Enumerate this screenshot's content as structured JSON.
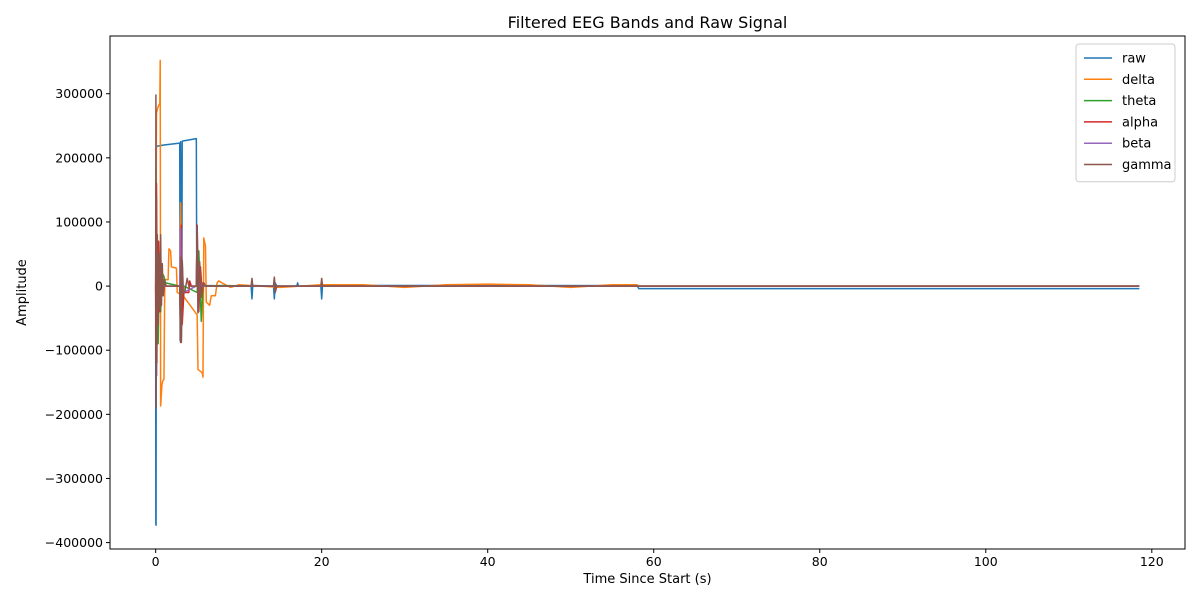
{
  "chart_data": {
    "type": "line",
    "title": "Filtered EEG Bands and Raw Signal",
    "xlabel": "Time Since Start (s)",
    "ylabel": "Amplitude",
    "xlim": [
      -5.5,
      124
    ],
    "ylim": [
      -410000,
      390000
    ],
    "xticks": [
      0,
      20,
      40,
      60,
      80,
      100,
      120
    ],
    "yticks": [
      -400000,
      -300000,
      -200000,
      -100000,
      0,
      100000,
      200000,
      300000
    ],
    "xtick_labels": [
      "0",
      "20",
      "40",
      "60",
      "80",
      "100",
      "120"
    ],
    "ytick_labels": [
      "−400000",
      "−300000",
      "−200000",
      "−100000",
      "0",
      "100000",
      "200000",
      "300000"
    ],
    "grid": false,
    "legend_position": "top-right",
    "series": [
      {
        "name": "raw",
        "color": "#1f77b4",
        "points": [
          [
            0,
            0
          ],
          [
            0.02,
            -370000
          ],
          [
            0.05,
            -373000
          ],
          [
            0.08,
            215000
          ],
          [
            0.12,
            218000
          ],
          [
            1.0,
            220000
          ],
          [
            2.9,
            223000
          ],
          [
            2.95,
            -85000
          ],
          [
            3.0,
            225000
          ],
          [
            3.15,
            -30000
          ],
          [
            3.2,
            226000
          ],
          [
            4.9,
            230000
          ],
          [
            4.95,
            2000
          ],
          [
            5.5,
            1000
          ],
          [
            11.5,
            0
          ],
          [
            11.6,
            -20000
          ],
          [
            11.7,
            1000
          ],
          [
            14.2,
            0
          ],
          [
            14.3,
            -20000
          ],
          [
            14.4,
            5000
          ],
          [
            14.6,
            0
          ],
          [
            17.0,
            0
          ],
          [
            17.1,
            5000
          ],
          [
            17.2,
            0
          ],
          [
            19.9,
            0
          ],
          [
            20.0,
            -20000
          ],
          [
            20.1,
            1000
          ],
          [
            58,
            800
          ],
          [
            58.2,
            -4000
          ],
          [
            118.5,
            -4000
          ]
        ]
      },
      {
        "name": "delta",
        "color": "#ff7f0e",
        "points": [
          [
            0,
            0
          ],
          [
            0.1,
            270000
          ],
          [
            0.3,
            280000
          ],
          [
            0.5,
            285000
          ],
          [
            0.55,
            352000
          ],
          [
            0.6,
            -187000
          ],
          [
            0.75,
            -155000
          ],
          [
            0.85,
            -148000
          ],
          [
            1.0,
            -145000
          ],
          [
            1.1,
            10000
          ],
          [
            1.5,
            10000
          ],
          [
            1.6,
            58000
          ],
          [
            1.8,
            55000
          ],
          [
            1.9,
            30000
          ],
          [
            2.5,
            28000
          ],
          [
            2.6,
            -10000
          ],
          [
            2.9,
            -12000
          ],
          [
            3.0,
            130000
          ],
          [
            3.1,
            -15000
          ],
          [
            3.3,
            -15000
          ],
          [
            5.0,
            -45000
          ],
          [
            5.1,
            -130000
          ],
          [
            5.6,
            -135000
          ],
          [
            5.7,
            -142000
          ],
          [
            5.8,
            75000
          ],
          [
            6.0,
            62000
          ],
          [
            6.1,
            -25000
          ],
          [
            6.5,
            -30000
          ],
          [
            6.7,
            -15000
          ],
          [
            7.2,
            -15000
          ],
          [
            7.4,
            5000
          ],
          [
            7.6,
            8000
          ],
          [
            8,
            5000
          ],
          [
            9,
            -2000
          ],
          [
            10,
            2000
          ],
          [
            15,
            -2000
          ],
          [
            20,
            2000
          ],
          [
            25,
            2000
          ],
          [
            30,
            -2000
          ],
          [
            35,
            2000
          ],
          [
            40,
            3000
          ],
          [
            45,
            2000
          ],
          [
            50,
            -2000
          ],
          [
            55,
            2000
          ],
          [
            58,
            2000
          ],
          [
            58.2,
            0
          ],
          [
            118.5,
            0
          ]
        ]
      },
      {
        "name": "theta",
        "color": "#2ca02c",
        "points": [
          [
            0,
            0
          ],
          [
            0.05,
            -100000
          ],
          [
            0.15,
            60000
          ],
          [
            0.3,
            -90000
          ],
          [
            0.45,
            40000
          ],
          [
            0.6,
            -40000
          ],
          [
            0.8,
            20000
          ],
          [
            1.0,
            15000
          ],
          [
            1.2,
            5000
          ],
          [
            2.9,
            0
          ],
          [
            3.0,
            40000
          ],
          [
            3.2,
            -35000
          ],
          [
            3.4,
            0
          ],
          [
            5.0,
            -10000
          ],
          [
            5.2,
            55000
          ],
          [
            5.5,
            -55000
          ],
          [
            5.7,
            0
          ],
          [
            8,
            1000
          ],
          [
            12,
            0
          ],
          [
            20,
            0
          ],
          [
            58,
            0
          ],
          [
            118.5,
            0
          ]
        ]
      },
      {
        "name": "alpha",
        "color": "#d62728",
        "points": [
          [
            0,
            0
          ],
          [
            0.05,
            -120000
          ],
          [
            0.1,
            160000
          ],
          [
            0.2,
            -30000
          ],
          [
            0.35,
            70000
          ],
          [
            0.5,
            -40000
          ],
          [
            0.7,
            25000
          ],
          [
            0.9,
            -15000
          ],
          [
            1.1,
            5000
          ],
          [
            1.3,
            0
          ],
          [
            2.9,
            0
          ],
          [
            3.0,
            -85000
          ],
          [
            3.1,
            95000
          ],
          [
            3.2,
            -60000
          ],
          [
            3.4,
            -10000
          ],
          [
            4.0,
            -10000
          ],
          [
            4.1,
            8000
          ],
          [
            4.3,
            0
          ],
          [
            4.9,
            0
          ],
          [
            5.0,
            95000
          ],
          [
            5.2,
            -40000
          ],
          [
            5.4,
            30000
          ],
          [
            5.6,
            -10000
          ],
          [
            5.8,
            5000
          ],
          [
            6.0,
            0
          ],
          [
            12,
            0
          ],
          [
            58,
            0
          ],
          [
            118.5,
            0
          ]
        ]
      },
      {
        "name": "beta",
        "color": "#9467bd",
        "points": [
          [
            0,
            0
          ],
          [
            0.05,
            120000
          ],
          [
            0.12,
            -140000
          ],
          [
            0.2,
            60000
          ],
          [
            0.3,
            -40000
          ],
          [
            0.45,
            30000
          ],
          [
            0.6,
            -20000
          ],
          [
            0.8,
            10000
          ],
          [
            1.0,
            0
          ],
          [
            2.9,
            0
          ],
          [
            3.0,
            90000
          ],
          [
            3.1,
            -80000
          ],
          [
            3.2,
            40000
          ],
          [
            3.35,
            -10000
          ],
          [
            4.9,
            0
          ],
          [
            5.0,
            90000
          ],
          [
            5.1,
            -40000
          ],
          [
            5.3,
            20000
          ],
          [
            5.5,
            0
          ],
          [
            14.2,
            0
          ],
          [
            14.3,
            12000
          ],
          [
            14.4,
            -8000
          ],
          [
            14.6,
            0
          ],
          [
            58,
            0
          ],
          [
            118.5,
            0
          ]
        ]
      },
      {
        "name": "gamma",
        "color": "#8c564b",
        "points": [
          [
            0,
            0
          ],
          [
            0.03,
            298000
          ],
          [
            0.06,
            -190000
          ],
          [
            0.1,
            140000
          ],
          [
            0.15,
            -120000
          ],
          [
            0.2,
            80000
          ],
          [
            0.3,
            -60000
          ],
          [
            0.4,
            50000
          ],
          [
            0.5,
            -35000
          ],
          [
            0.6,
            80000
          ],
          [
            0.7,
            -30000
          ],
          [
            0.8,
            35000
          ],
          [
            0.9,
            -15000
          ],
          [
            1.0,
            10000
          ],
          [
            1.2,
            0
          ],
          [
            2.9,
            0
          ],
          [
            3.0,
            -88000
          ],
          [
            3.05,
            45000
          ],
          [
            3.1,
            -88000
          ],
          [
            3.2,
            40000
          ],
          [
            3.3,
            -10000
          ],
          [
            3.5,
            -10000
          ],
          [
            3.8,
            12000
          ],
          [
            4.0,
            0
          ],
          [
            4.9,
            0
          ],
          [
            5.0,
            93000
          ],
          [
            5.1,
            -42000
          ],
          [
            5.3,
            38000
          ],
          [
            5.5,
            -18000
          ],
          [
            5.7,
            5000
          ],
          [
            6.0,
            0
          ],
          [
            11.5,
            0
          ],
          [
            11.6,
            12000
          ],
          [
            11.7,
            0
          ],
          [
            14.2,
            0
          ],
          [
            14.3,
            14000
          ],
          [
            14.4,
            -10000
          ],
          [
            14.6,
            0
          ],
          [
            19.9,
            0
          ],
          [
            20.0,
            12000
          ],
          [
            20.1,
            0
          ],
          [
            58,
            0
          ],
          [
            118.5,
            0
          ]
        ]
      }
    ]
  }
}
